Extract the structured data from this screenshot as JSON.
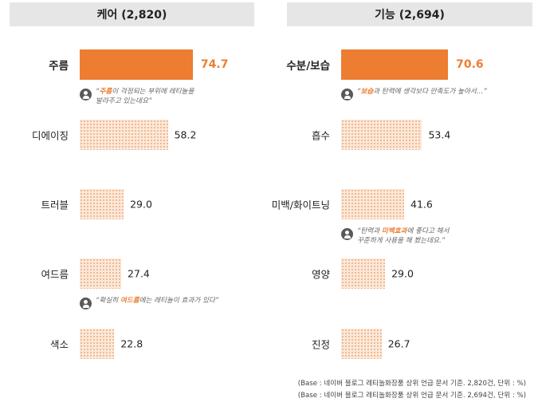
{
  "chart_data": [
    {
      "type": "bar",
      "orientation": "horizontal",
      "title": "케어 (2,820)",
      "categories": [
        "주름",
        "디에이징",
        "트러블",
        "여드름",
        "색소"
      ],
      "values": [
        74.7,
        58.2,
        29.0,
        27.4,
        22.8
      ],
      "value_labels": [
        "74.7",
        "58.2",
        "29.0",
        "27.4",
        "22.8"
      ],
      "highlight_index": 0,
      "quotes": [
        {
          "after_index": 0,
          "lines": [
            [
              {
                "t": "“",
                "k": false
              },
              {
                "t": "주름",
                "k": true
              },
              {
                "t": "이 걱정되는 부위에 레티놀을",
                "k": false
              }
            ],
            [
              {
                "t": "발라주고 있는데요”",
                "k": false
              }
            ]
          ]
        },
        {
          "after_index": 3,
          "lines": [
            [
              {
                "t": "“확실히 ",
                "k": false
              },
              {
                "t": "여드름",
                "k": true
              },
              {
                "t": "에는 레티놀이 효과가 있다”",
                "k": false
              }
            ]
          ]
        }
      ],
      "base_note": "(Base : 네이버 블로그 레티놀화장품 상위 언급 문서 기준. 2,820건, 단위 : %)"
    },
    {
      "type": "bar",
      "orientation": "horizontal",
      "title": "기능 (2,694)",
      "categories": [
        "수분/보습",
        "흡수",
        "미백/화이트닝",
        "영양",
        "진정"
      ],
      "values": [
        70.6,
        53.4,
        41.6,
        29.0,
        26.7
      ],
      "value_labels": [
        "70.6",
        "53.4",
        "41.6",
        "29.0",
        "26.7"
      ],
      "highlight_index": 0,
      "quotes": [
        {
          "after_index": 0,
          "lines": [
            [
              {
                "t": "“",
                "k": false
              },
              {
                "t": "보습",
                "k": true
              },
              {
                "t": "과 탄력에 생각보다 만족도가 높아서…”",
                "k": false
              }
            ]
          ]
        },
        {
          "after_index": 2,
          "lines": [
            [
              {
                "t": "“탄력과 ",
                "k": false
              },
              {
                "t": "미백효과",
                "k": true
              },
              {
                "t": "에 좋다고 해서",
                "k": false
              }
            ],
            [
              {
                "t": "꾸준하게 사용을 해 봤는데요.”",
                "k": false
              }
            ]
          ]
        }
      ],
      "base_note": "(Base : 네이버 블로그 레티놀화장품 상위 언급 문서 기준. 2,694건, 단위 : %)"
    }
  ],
  "colors": {
    "highlight_bar": "#ed7d31",
    "pattern_bar_bg": "#fbe9db",
    "pattern_bar_dot": "#f2b68b",
    "header_bg": "#e6e6e6",
    "keyword": "#ed7d31"
  },
  "icons": {
    "quote_icon": "user-silhouette-icon"
  }
}
